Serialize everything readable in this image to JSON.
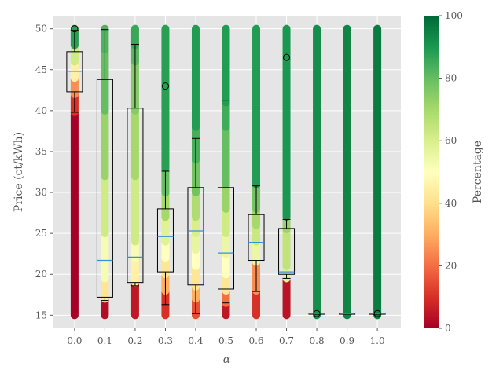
{
  "chart_data": {
    "type": "boxplot-scatter",
    "xlabel": "α",
    "ylabel": "Price (ct/kWh)",
    "colorbar_label": "Percentage",
    "ylim": [
      13.4,
      51.6
    ],
    "categories": [
      "0.0",
      "0.1",
      "0.2",
      "0.3",
      "0.4",
      "0.5",
      "0.6",
      "0.7",
      "0.8",
      "0.9",
      "1.0"
    ],
    "y_ticks": [
      15,
      20,
      25,
      30,
      35,
      40,
      45,
      50
    ],
    "colorbar_ticks": [
      0,
      20,
      40,
      60,
      80,
      100
    ],
    "colormap": "RdYlGn",
    "background_color": "#e5e5e5",
    "grid": true,
    "boxes": [
      {
        "category": "0.0",
        "q1": 42.3,
        "median": 44.8,
        "q3": 47.2,
        "whisker_low": 39.8,
        "whisker_high": 49.8,
        "outliers": [
          50.0
        ]
      },
      {
        "category": "0.1",
        "q1": 17.2,
        "median": 21.7,
        "q3": 43.8,
        "whisker_low": 16.8,
        "whisker_high": 49.9,
        "outliers": []
      },
      {
        "category": "0.2",
        "q1": 19.0,
        "median": 22.1,
        "q3": 40.3,
        "whisker_low": 18.6,
        "whisker_high": 48.1,
        "outliers": []
      },
      {
        "category": "0.3",
        "q1": 20.3,
        "median": 24.6,
        "q3": 28.0,
        "whisker_low": 16.3,
        "whisker_high": 32.6,
        "outliers": [
          43.0
        ]
      },
      {
        "category": "0.4",
        "q1": 18.7,
        "median": 25.3,
        "q3": 30.6,
        "whisker_low": 15.2,
        "whisker_high": 36.6,
        "outliers": []
      },
      {
        "category": "0.5",
        "q1": 18.2,
        "median": 22.6,
        "q3": 30.6,
        "whisker_low": 16.5,
        "whisker_high": 41.2,
        "outliers": []
      },
      {
        "category": "0.6",
        "q1": 21.7,
        "median": 23.9,
        "q3": 27.3,
        "whisker_low": 17.9,
        "whisker_high": 30.8,
        "outliers": []
      },
      {
        "category": "0.7",
        "q1": 20.0,
        "median": 20.3,
        "q3": 25.6,
        "whisker_low": 19.5,
        "whisker_high": 26.7,
        "outliers": [
          46.5
        ]
      },
      {
        "category": "0.8",
        "q1": 15.2,
        "median": 15.2,
        "q3": 15.2,
        "whisker_low": 15.2,
        "whisker_high": 15.2,
        "outliers": [
          15.2
        ]
      },
      {
        "category": "0.9",
        "q1": 15.2,
        "median": 15.2,
        "q3": 15.2,
        "whisker_low": 15.2,
        "whisker_high": 15.2,
        "outliers": []
      },
      {
        "category": "1.0",
        "q1": 15.2,
        "median": 15.2,
        "q3": 15.2,
        "whisker_low": 15.2,
        "whisker_high": 15.2,
        "outliers": [
          15.2
        ]
      }
    ],
    "scatter_columns": [
      {
        "category": "0.0",
        "segments": [
          [
            15,
            39.8,
            0
          ],
          [
            39.8,
            42,
            10
          ],
          [
            42,
            44,
            25
          ],
          [
            44,
            46,
            45
          ],
          [
            46,
            48,
            62
          ],
          [
            48,
            50,
            88
          ]
        ]
      },
      {
        "category": "0.1",
        "segments": [
          [
            15,
            17,
            3
          ],
          [
            17,
            19.5,
            42
          ],
          [
            19.5,
            25,
            52
          ],
          [
            25,
            32,
            62
          ],
          [
            32,
            40,
            72
          ],
          [
            40,
            47.5,
            80
          ],
          [
            47.5,
            50,
            83
          ]
        ]
      },
      {
        "category": "0.2",
        "segments": [
          [
            15,
            19,
            5
          ],
          [
            19,
            22,
            45
          ],
          [
            22,
            24,
            52
          ],
          [
            24,
            32,
            62
          ],
          [
            32,
            40,
            70
          ],
          [
            40,
            46,
            75
          ],
          [
            46,
            48,
            82
          ],
          [
            48,
            50,
            86
          ]
        ]
      },
      {
        "category": "0.3",
        "segments": [
          [
            15,
            18,
            10
          ],
          [
            18,
            20,
            30
          ],
          [
            20,
            22,
            42
          ],
          [
            22,
            24,
            50
          ],
          [
            24,
            27,
            58
          ],
          [
            27,
            30,
            70
          ],
          [
            30,
            33,
            80
          ],
          [
            33,
            50,
            88
          ]
        ]
      },
      {
        "category": "0.4",
        "segments": [
          [
            15,
            17,
            15
          ],
          [
            17,
            18.5,
            30
          ],
          [
            18.5,
            21,
            42
          ],
          [
            21,
            23,
            50
          ],
          [
            23,
            25,
            56
          ],
          [
            25,
            27,
            60
          ],
          [
            27,
            30,
            68
          ],
          [
            30,
            34,
            78
          ],
          [
            34,
            38,
            84
          ],
          [
            38,
            50,
            89
          ]
        ]
      },
      {
        "category": "0.5",
        "segments": [
          [
            15,
            16.5,
            5
          ],
          [
            16.5,
            18,
            20
          ],
          [
            18,
            20,
            42
          ],
          [
            20,
            22.5,
            50
          ],
          [
            22.5,
            25,
            55
          ],
          [
            25,
            28,
            62
          ],
          [
            28,
            31,
            72
          ],
          [
            31,
            38,
            80
          ],
          [
            38,
            41,
            85
          ],
          [
            41,
            50,
            89
          ]
        ]
      },
      {
        "category": "0.6",
        "segments": [
          [
            15,
            18,
            10
          ],
          [
            18,
            21.5,
            25
          ],
          [
            21.5,
            24,
            55
          ],
          [
            24,
            26,
            63
          ],
          [
            26,
            28,
            70
          ],
          [
            28,
            31,
            78
          ],
          [
            31,
            50,
            89
          ]
        ]
      },
      {
        "category": "0.7",
        "segments": [
          [
            15,
            19.5,
            4
          ],
          [
            19.5,
            21,
            58
          ],
          [
            21,
            25.5,
            65
          ],
          [
            25.5,
            27,
            72
          ],
          [
            27,
            50,
            90
          ]
        ]
      },
      {
        "category": "0.8",
        "segments": [
          [
            15,
            50,
            92
          ]
        ]
      },
      {
        "category": "0.9",
        "segments": [
          [
            15,
            50,
            94
          ]
        ]
      },
      {
        "category": "1.0",
        "segments": [
          [
            15,
            50,
            96
          ]
        ]
      }
    ]
  }
}
